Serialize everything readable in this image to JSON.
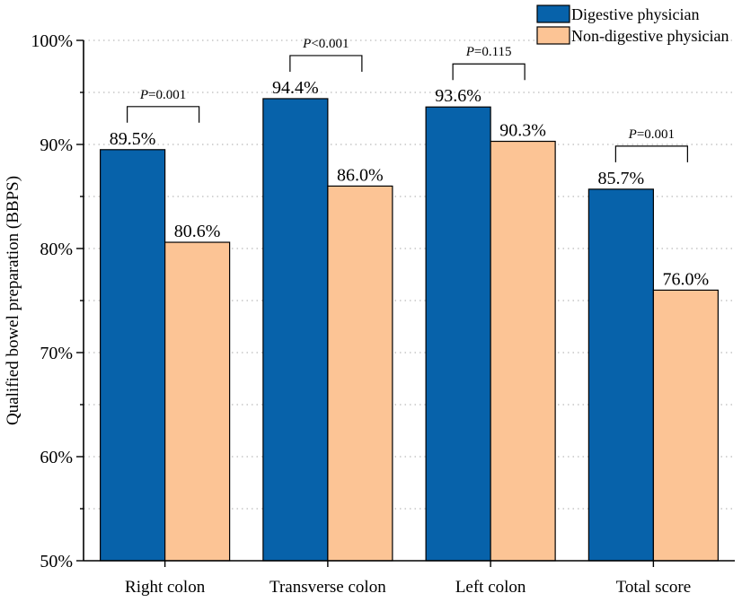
{
  "chart_data": {
    "type": "bar",
    "title": "",
    "xlabel": "",
    "ylabel": "Qualified bowel preparation (BBPS)",
    "ylim": [
      50,
      100
    ],
    "yticks": [
      "50%",
      "60%",
      "70%",
      "80%",
      "90%",
      "100%"
    ],
    "grid": "horizontal dotted",
    "legend_position": "top-right",
    "categories": [
      "Right colon",
      "Transverse colon",
      "Left colon",
      "Total score"
    ],
    "series": [
      {
        "name": "Digestive physician",
        "color": "#0762aa",
        "values": [
          89.5,
          94.4,
          93.6,
          85.7
        ],
        "labels": [
          "89.5%",
          "94.4%",
          "93.6%",
          "85.7%"
        ]
      },
      {
        "name": "Non-digestive physician",
        "color": "#fcc495",
        "values": [
          80.6,
          86.0,
          90.3,
          76.0
        ],
        "labels": [
          "80.6%",
          "86.0%",
          "90.3%",
          "76.0%"
        ]
      }
    ],
    "annotations": [
      {
        "p_symbol": "P",
        "p_rest": "=0.001"
      },
      {
        "p_symbol": "P",
        "p_rest": "<0.001"
      },
      {
        "p_symbol": "P",
        "p_rest": "=0.115"
      },
      {
        "p_symbol": "P",
        "p_rest": "=0.001"
      }
    ]
  }
}
